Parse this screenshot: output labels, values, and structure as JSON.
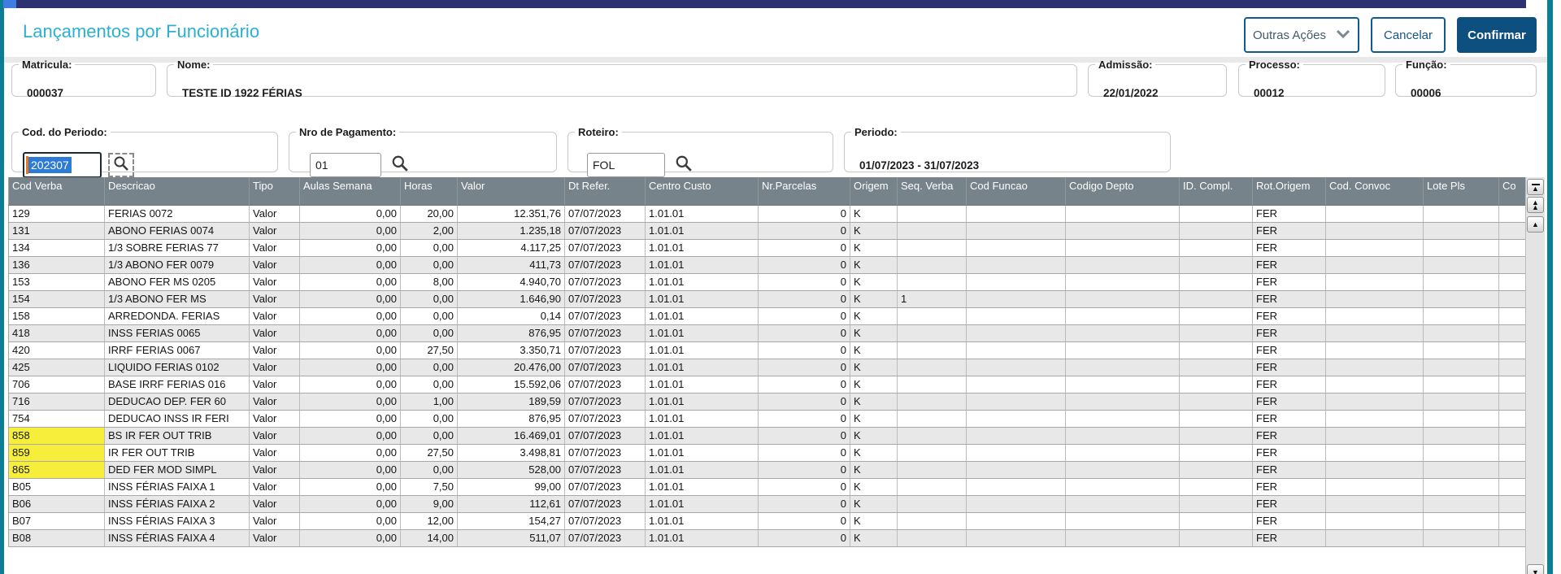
{
  "window": {
    "title": "Lançamentos por Funcionário"
  },
  "toolbar": {
    "outras_acoes": "Outras Ações",
    "cancelar": "Cancelar",
    "confirmar": "Confirmar"
  },
  "form": {
    "matricula": {
      "label": "Matricula:",
      "value": "000037"
    },
    "nome": {
      "label": "Nome:",
      "value": "TESTE ID 1922 FÉRIAS"
    },
    "admissao": {
      "label": "Admissão:",
      "value": "22/01/2022"
    },
    "processo": {
      "label": "Processo:",
      "value": "00012"
    },
    "funcao": {
      "label": "Função:",
      "value": "00006"
    },
    "cod_periodo": {
      "label": "Cod. do Periodo:",
      "value": "202307"
    },
    "nro_pagamento": {
      "label": "Nro de Pagamento:",
      "value": "01"
    },
    "roteiro": {
      "label": "Roteiro:",
      "value": "FOL"
    },
    "periodo": {
      "label": "Periodo:",
      "value": "01/07/2023 - 31/07/2023"
    }
  },
  "table": {
    "columns": [
      "Cod Verba",
      "Descricao",
      "Tipo",
      "Aulas Semana",
      "Horas",
      "Valor",
      "Dt Refer.",
      "Centro Custo",
      "Nr.Parcelas",
      "Origem",
      "Seq. Verba",
      "Cod Funcao",
      "Codigo Depto",
      "ID. Compl.",
      "Rot.Origem",
      "Cod. Convoc",
      "Lote Pls",
      "Co"
    ],
    "rows": [
      {
        "cod": "129",
        "descricao": "FERIAS 0072",
        "tipo": "Valor",
        "aulas": "0,00",
        "horas": "20,00",
        "valor": "12.351,76",
        "dt_refer": "07/07/2023",
        "centro_custo": "1.01.01",
        "nr_parcelas": "0",
        "origem": "K",
        "seq_verba": "",
        "rot_origem": "FER",
        "highlight": false
      },
      {
        "cod": "131",
        "descricao": "ABONO FERIAS 0074",
        "tipo": "Valor",
        "aulas": "0,00",
        "horas": "2,00",
        "valor": "1.235,18",
        "dt_refer": "07/07/2023",
        "centro_custo": "1.01.01",
        "nr_parcelas": "0",
        "origem": "K",
        "seq_verba": "",
        "rot_origem": "FER",
        "highlight": false
      },
      {
        "cod": "134",
        "descricao": "1/3 SOBRE FERIAS 77",
        "tipo": "Valor",
        "aulas": "0,00",
        "horas": "0,00",
        "valor": "4.117,25",
        "dt_refer": "07/07/2023",
        "centro_custo": "1.01.01",
        "nr_parcelas": "0",
        "origem": "K",
        "seq_verba": "",
        "rot_origem": "FER",
        "highlight": false
      },
      {
        "cod": "136",
        "descricao": "1/3 ABONO FER 0079",
        "tipo": "Valor",
        "aulas": "0,00",
        "horas": "0,00",
        "valor": "411,73",
        "dt_refer": "07/07/2023",
        "centro_custo": "1.01.01",
        "nr_parcelas": "0",
        "origem": "K",
        "seq_verba": "",
        "rot_origem": "FER",
        "highlight": false
      },
      {
        "cod": "153",
        "descricao": "ABONO FER MS 0205",
        "tipo": "Valor",
        "aulas": "0,00",
        "horas": "8,00",
        "valor": "4.940,70",
        "dt_refer": "07/07/2023",
        "centro_custo": "1.01.01",
        "nr_parcelas": "0",
        "origem": "K",
        "seq_verba": "",
        "rot_origem": "FER",
        "highlight": false
      },
      {
        "cod": "154",
        "descricao": "1/3 ABONO FER MS",
        "tipo": "Valor",
        "aulas": "0,00",
        "horas": "0,00",
        "valor": "1.646,90",
        "dt_refer": "07/07/2023",
        "centro_custo": "1.01.01",
        "nr_parcelas": "0",
        "origem": "K",
        "seq_verba": "1",
        "rot_origem": "FER",
        "highlight": false
      },
      {
        "cod": "158",
        "descricao": "ARREDONDA. FERIAS",
        "tipo": "Valor",
        "aulas": "0,00",
        "horas": "0,00",
        "valor": "0,14",
        "dt_refer": "07/07/2023",
        "centro_custo": "1.01.01",
        "nr_parcelas": "0",
        "origem": "K",
        "seq_verba": "",
        "rot_origem": "FER",
        "highlight": false
      },
      {
        "cod": "418",
        "descricao": "INSS FERIAS 0065",
        "tipo": "Valor",
        "aulas": "0,00",
        "horas": "0,00",
        "valor": "876,95",
        "dt_refer": "07/07/2023",
        "centro_custo": "1.01.01",
        "nr_parcelas": "0",
        "origem": "K",
        "seq_verba": "",
        "rot_origem": "FER",
        "highlight": false
      },
      {
        "cod": "420",
        "descricao": "IRRF FERIAS 0067",
        "tipo": "Valor",
        "aulas": "0,00",
        "horas": "27,50",
        "valor": "3.350,71",
        "dt_refer": "07/07/2023",
        "centro_custo": "1.01.01",
        "nr_parcelas": "0",
        "origem": "K",
        "seq_verba": "",
        "rot_origem": "FER",
        "highlight": false
      },
      {
        "cod": "425",
        "descricao": "LIQUIDO FERIAS 0102",
        "tipo": "Valor",
        "aulas": "0,00",
        "horas": "0,00",
        "valor": "20.476,00",
        "dt_refer": "07/07/2023",
        "centro_custo": "1.01.01",
        "nr_parcelas": "0",
        "origem": "K",
        "seq_verba": "",
        "rot_origem": "FER",
        "highlight": false
      },
      {
        "cod": "706",
        "descricao": "BASE IRRF FERIAS 016",
        "tipo": "Valor",
        "aulas": "0,00",
        "horas": "0,00",
        "valor": "15.592,06",
        "dt_refer": "07/07/2023",
        "centro_custo": "1.01.01",
        "nr_parcelas": "0",
        "origem": "K",
        "seq_verba": "",
        "rot_origem": "FER",
        "highlight": false
      },
      {
        "cod": "716",
        "descricao": "DEDUCAO DEP. FER 60",
        "tipo": "Valor",
        "aulas": "0,00",
        "horas": "1,00",
        "valor": "189,59",
        "dt_refer": "07/07/2023",
        "centro_custo": "1.01.01",
        "nr_parcelas": "0",
        "origem": "K",
        "seq_verba": "",
        "rot_origem": "FER",
        "highlight": false
      },
      {
        "cod": "754",
        "descricao": "DEDUCAO INSS IR FERI",
        "tipo": "Valor",
        "aulas": "0,00",
        "horas": "0,00",
        "valor": "876,95",
        "dt_refer": "07/07/2023",
        "centro_custo": "1.01.01",
        "nr_parcelas": "0",
        "origem": "K",
        "seq_verba": "",
        "rot_origem": "FER",
        "highlight": false
      },
      {
        "cod": "858",
        "descricao": "BS IR FER OUT TRIB",
        "tipo": "Valor",
        "aulas": "0,00",
        "horas": "0,00",
        "valor": "16.469,01",
        "dt_refer": "07/07/2023",
        "centro_custo": "1.01.01",
        "nr_parcelas": "0",
        "origem": "K",
        "seq_verba": "",
        "rot_origem": "FER",
        "highlight": true
      },
      {
        "cod": "859",
        "descricao": "IR FER OUT TRIB",
        "tipo": "Valor",
        "aulas": "0,00",
        "horas": "27,50",
        "valor": "3.498,81",
        "dt_refer": "07/07/2023",
        "centro_custo": "1.01.01",
        "nr_parcelas": "0",
        "origem": "K",
        "seq_verba": "",
        "rot_origem": "FER",
        "highlight": true
      },
      {
        "cod": "865",
        "descricao": "DED FER MOD SIMPL",
        "tipo": "Valor",
        "aulas": "0,00",
        "horas": "0,00",
        "valor": "528,00",
        "dt_refer": "07/07/2023",
        "centro_custo": "1.01.01",
        "nr_parcelas": "0",
        "origem": "K",
        "seq_verba": "",
        "rot_origem": "FER",
        "highlight": true
      },
      {
        "cod": "B05",
        "descricao": "INSS FÉRIAS FAIXA 1",
        "tipo": "Valor",
        "aulas": "0,00",
        "horas": "7,50",
        "valor": "99,00",
        "dt_refer": "07/07/2023",
        "centro_custo": "1.01.01",
        "nr_parcelas": "0",
        "origem": "K",
        "seq_verba": "",
        "rot_origem": "FER",
        "highlight": false
      },
      {
        "cod": "B06",
        "descricao": "INSS FÉRIAS FAIXA 2",
        "tipo": "Valor",
        "aulas": "0,00",
        "horas": "9,00",
        "valor": "112,61",
        "dt_refer": "07/07/2023",
        "centro_custo": "1.01.01",
        "nr_parcelas": "0",
        "origem": "K",
        "seq_verba": "",
        "rot_origem": "FER",
        "highlight": false
      },
      {
        "cod": "B07",
        "descricao": "INSS FÉRIAS FAIXA 3",
        "tipo": "Valor",
        "aulas": "0,00",
        "horas": "12,00",
        "valor": "154,27",
        "dt_refer": "07/07/2023",
        "centro_custo": "1.01.01",
        "nr_parcelas": "0",
        "origem": "K",
        "seq_verba": "",
        "rot_origem": "FER",
        "highlight": false
      },
      {
        "cod": "B08",
        "descricao": "INSS FÉRIAS FAIXA 4",
        "tipo": "Valor",
        "aulas": "0,00",
        "horas": "14,00",
        "valor": "511,07",
        "dt_refer": "07/07/2023",
        "centro_custo": "1.01.01",
        "nr_parcelas": "0",
        "origem": "K",
        "seq_verba": "",
        "rot_origem": "FER",
        "highlight": false
      }
    ],
    "highlighted_codes": [
      "858",
      "859",
      "865"
    ]
  },
  "colors": {
    "accent_teal": "#0a7e95",
    "title_cyan": "#2cb0cf",
    "topbar_navy": "#2b3171",
    "topbar_accent_blue": "#3f7de0",
    "button_border": "#0f5b8d",
    "button_blue": "#0d4f7e",
    "header_gray": "#77838a",
    "row_alt": "#e8e8e8",
    "highlight_yellow": "#f7ee3b",
    "selection_blue": "#2e7bd6",
    "caret_orange": "#e87722"
  }
}
